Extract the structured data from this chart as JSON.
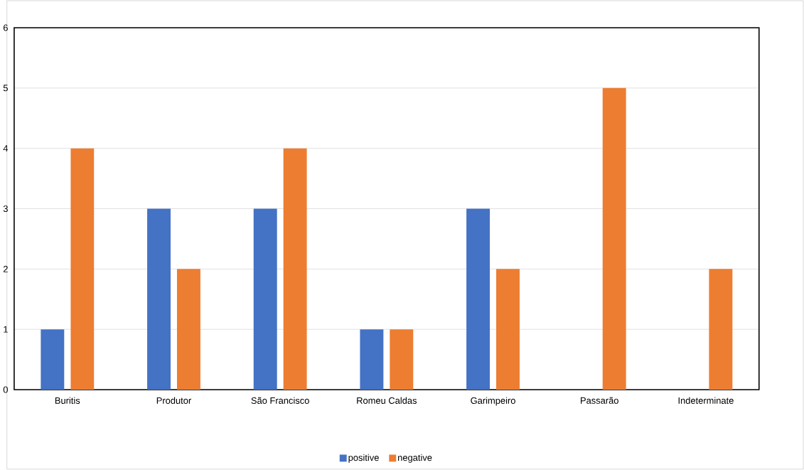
{
  "chart_data": {
    "type": "bar",
    "categories": [
      "Buritis",
      "Produtor",
      "São Francisco",
      "Romeu Caldas",
      "Garimpeiro",
      "Passarão",
      "Indeterminate"
    ],
    "series": [
      {
        "name": "positive",
        "color": "#4472c4",
        "values": [
          1,
          3,
          3,
          1,
          3,
          0,
          0
        ]
      },
      {
        "name": "negative",
        "color": "#ed7d31",
        "values": [
          4,
          2,
          4,
          1,
          2,
          5,
          2
        ]
      }
    ],
    "ylim": [
      0,
      6
    ],
    "yticks": [
      0,
      1,
      2,
      3,
      4,
      5,
      6
    ],
    "grid": "y",
    "legend": "bottom"
  }
}
